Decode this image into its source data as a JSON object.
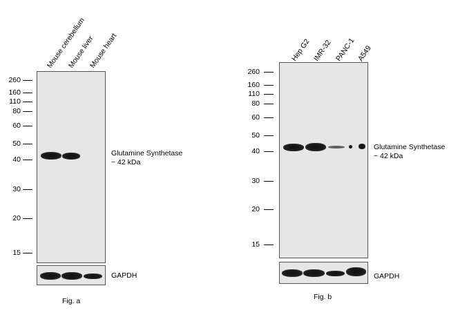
{
  "fig_a": {
    "lanes": [
      "Mouse cerebellum",
      "Mouse liver",
      "Mouse heart"
    ],
    "markers": [
      "260",
      "160",
      "110",
      "80",
      "60",
      "50",
      "40",
      "30",
      "20",
      "15"
    ],
    "target_label": "Glutamine Synthetase",
    "target_size": "~ 42 kDa",
    "control_label": "GAPDH",
    "caption": "Fig. a"
  },
  "fig_b": {
    "lanes": [
      "Hep G2",
      "IMR-32",
      "PANC-1",
      "A549"
    ],
    "markers": [
      "260",
      "160",
      "110",
      "80",
      "60",
      "50",
      "40",
      "30",
      "20",
      "15"
    ],
    "target_label": "Glutamine Synthetase",
    "target_size": "~ 42 kDa",
    "control_label": "GAPDH",
    "caption": "Fig. b"
  }
}
